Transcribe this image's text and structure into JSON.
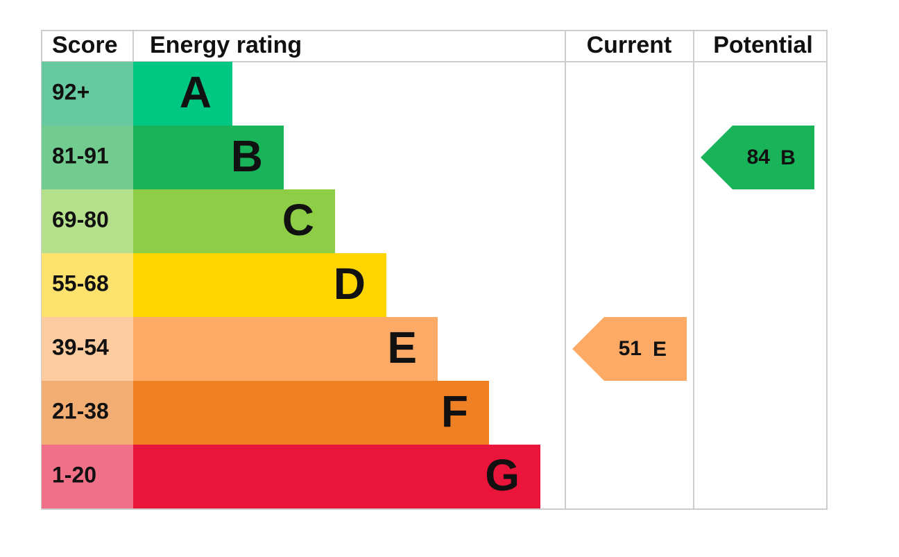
{
  "header": {
    "score": "Score",
    "rating": "Energy rating",
    "current": "Current",
    "potential": "Potential"
  },
  "rows": [
    {
      "score": "92+",
      "letter": "A",
      "color": "#00c781",
      "score_color": "#66c9a0"
    },
    {
      "score": "81-91",
      "letter": "B",
      "color": "#19b459",
      "score_color": "#72cc8f"
    },
    {
      "score": "69-80",
      "letter": "C",
      "color": "#8dce46",
      "score_color": "#b5e08b"
    },
    {
      "score": "55-68",
      "letter": "D",
      "color": "#ffd500",
      "score_color": "#fde26d"
    },
    {
      "score": "39-54",
      "letter": "E",
      "color": "#fcaa65",
      "score_color": "#fccb9f"
    },
    {
      "score": "21-38",
      "letter": "F",
      "color": "#ef8023",
      "score_color": "#f2ad72"
    },
    {
      "score": "1-20",
      "letter": "G",
      "color": "#e9153b",
      "score_color": "#f07088"
    }
  ],
  "current": {
    "value": 51,
    "letter": "E",
    "color": "#fcaa65"
  },
  "potential": {
    "value": 84,
    "letter": "B",
    "color": "#19b459"
  }
}
